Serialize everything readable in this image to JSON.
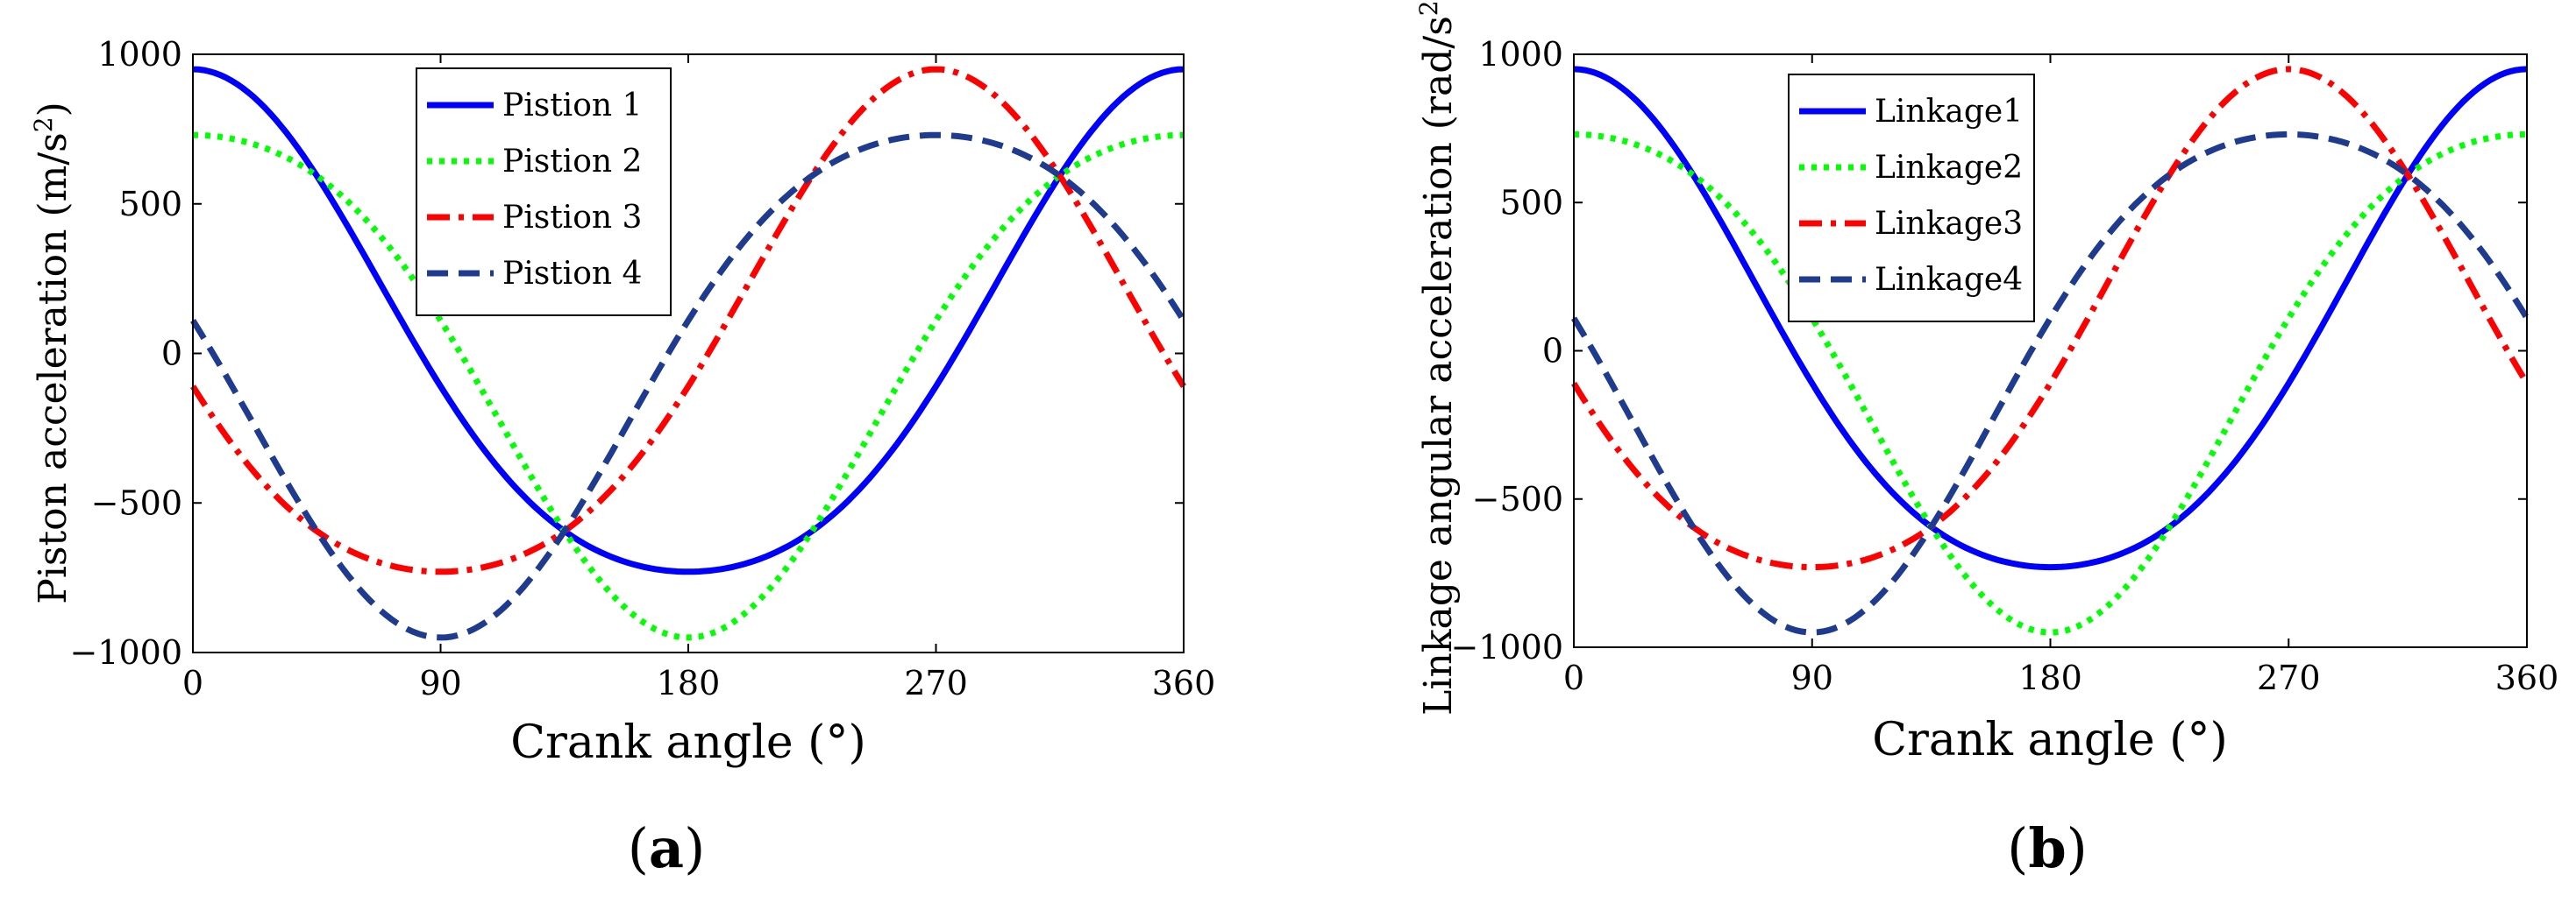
{
  "chart_data": [
    {
      "type": "line",
      "panel_label": "a",
      "panel_open": "(",
      "panel_close": ")",
      "xlabel": "Crank angle (°)",
      "ylabel_main": "Piston acceleration (m/s",
      "ylabel_sup": "2",
      "ylabel_close": ")",
      "xlim": [
        0,
        360
      ],
      "ylim": [
        -1000,
        1000
      ],
      "xticks": [
        0,
        90,
        180,
        270,
        360
      ],
      "yticks": [
        -1000,
        -500,
        0,
        500,
        1000
      ],
      "xtick_labels": [
        "0",
        "90",
        "180",
        "270",
        "360"
      ],
      "ytick_labels": [
        "−1000",
        "−500",
        "0",
        "500",
        "1000"
      ],
      "grid": false,
      "legend_position": "top-center",
      "series": [
        {
          "name": "Pistion 1",
          "color": "#0000ff",
          "dash": "solid",
          "amplitude": 840,
          "offset": 110,
          "phase_deg": 0
        },
        {
          "name": "Pistion 2",
          "color": "#00ff00",
          "dash": "dot",
          "amplitude": 840,
          "offset": -110,
          "phase_deg": 0
        },
        {
          "name": "Pistion 3",
          "color": "#ff0000",
          "dash": "dashdot",
          "amplitude": 840,
          "offset": 110,
          "phase_deg": 270
        },
        {
          "name": "Pistion 4",
          "color": "#1f3b8f",
          "dash": "dash",
          "amplitude": 840,
          "offset": -110,
          "phase_deg": 270
        }
      ]
    },
    {
      "type": "line",
      "panel_label": "b",
      "panel_open": "(",
      "panel_close": ")",
      "xlabel": "Crank angle (°)",
      "ylabel_main": "Linkage angular acceleration (rad/s",
      "ylabel_sup": "2",
      "ylabel_close": ")",
      "xlim": [
        0,
        360
      ],
      "ylim": [
        -1000,
        1000
      ],
      "xticks": [
        0,
        90,
        180,
        270,
        360
      ],
      "yticks": [
        -1000,
        -500,
        0,
        500,
        1000
      ],
      "xtick_labels": [
        "0",
        "90",
        "180",
        "270",
        "360"
      ],
      "ytick_labels": [
        "−1000",
        "−500",
        "0",
        "500",
        "1000"
      ],
      "grid": false,
      "legend_position": "top-left",
      "series": [
        {
          "name": "Linkage1",
          "color": "#0000ff",
          "dash": "solid",
          "amplitude": 840,
          "offset": 110,
          "phase_deg": 0
        },
        {
          "name": "Linkage2",
          "color": "#00ff00",
          "dash": "dot",
          "amplitude": 840,
          "offset": -110,
          "phase_deg": 0
        },
        {
          "name": "Linkage3",
          "color": "#ff0000",
          "dash": "dashdot",
          "amplitude": 840,
          "offset": 110,
          "phase_deg": 270
        },
        {
          "name": "Linkage4",
          "color": "#1f3b8f",
          "dash": "dash",
          "amplitude": 840,
          "offset": -110,
          "phase_deg": 270
        }
      ]
    }
  ]
}
